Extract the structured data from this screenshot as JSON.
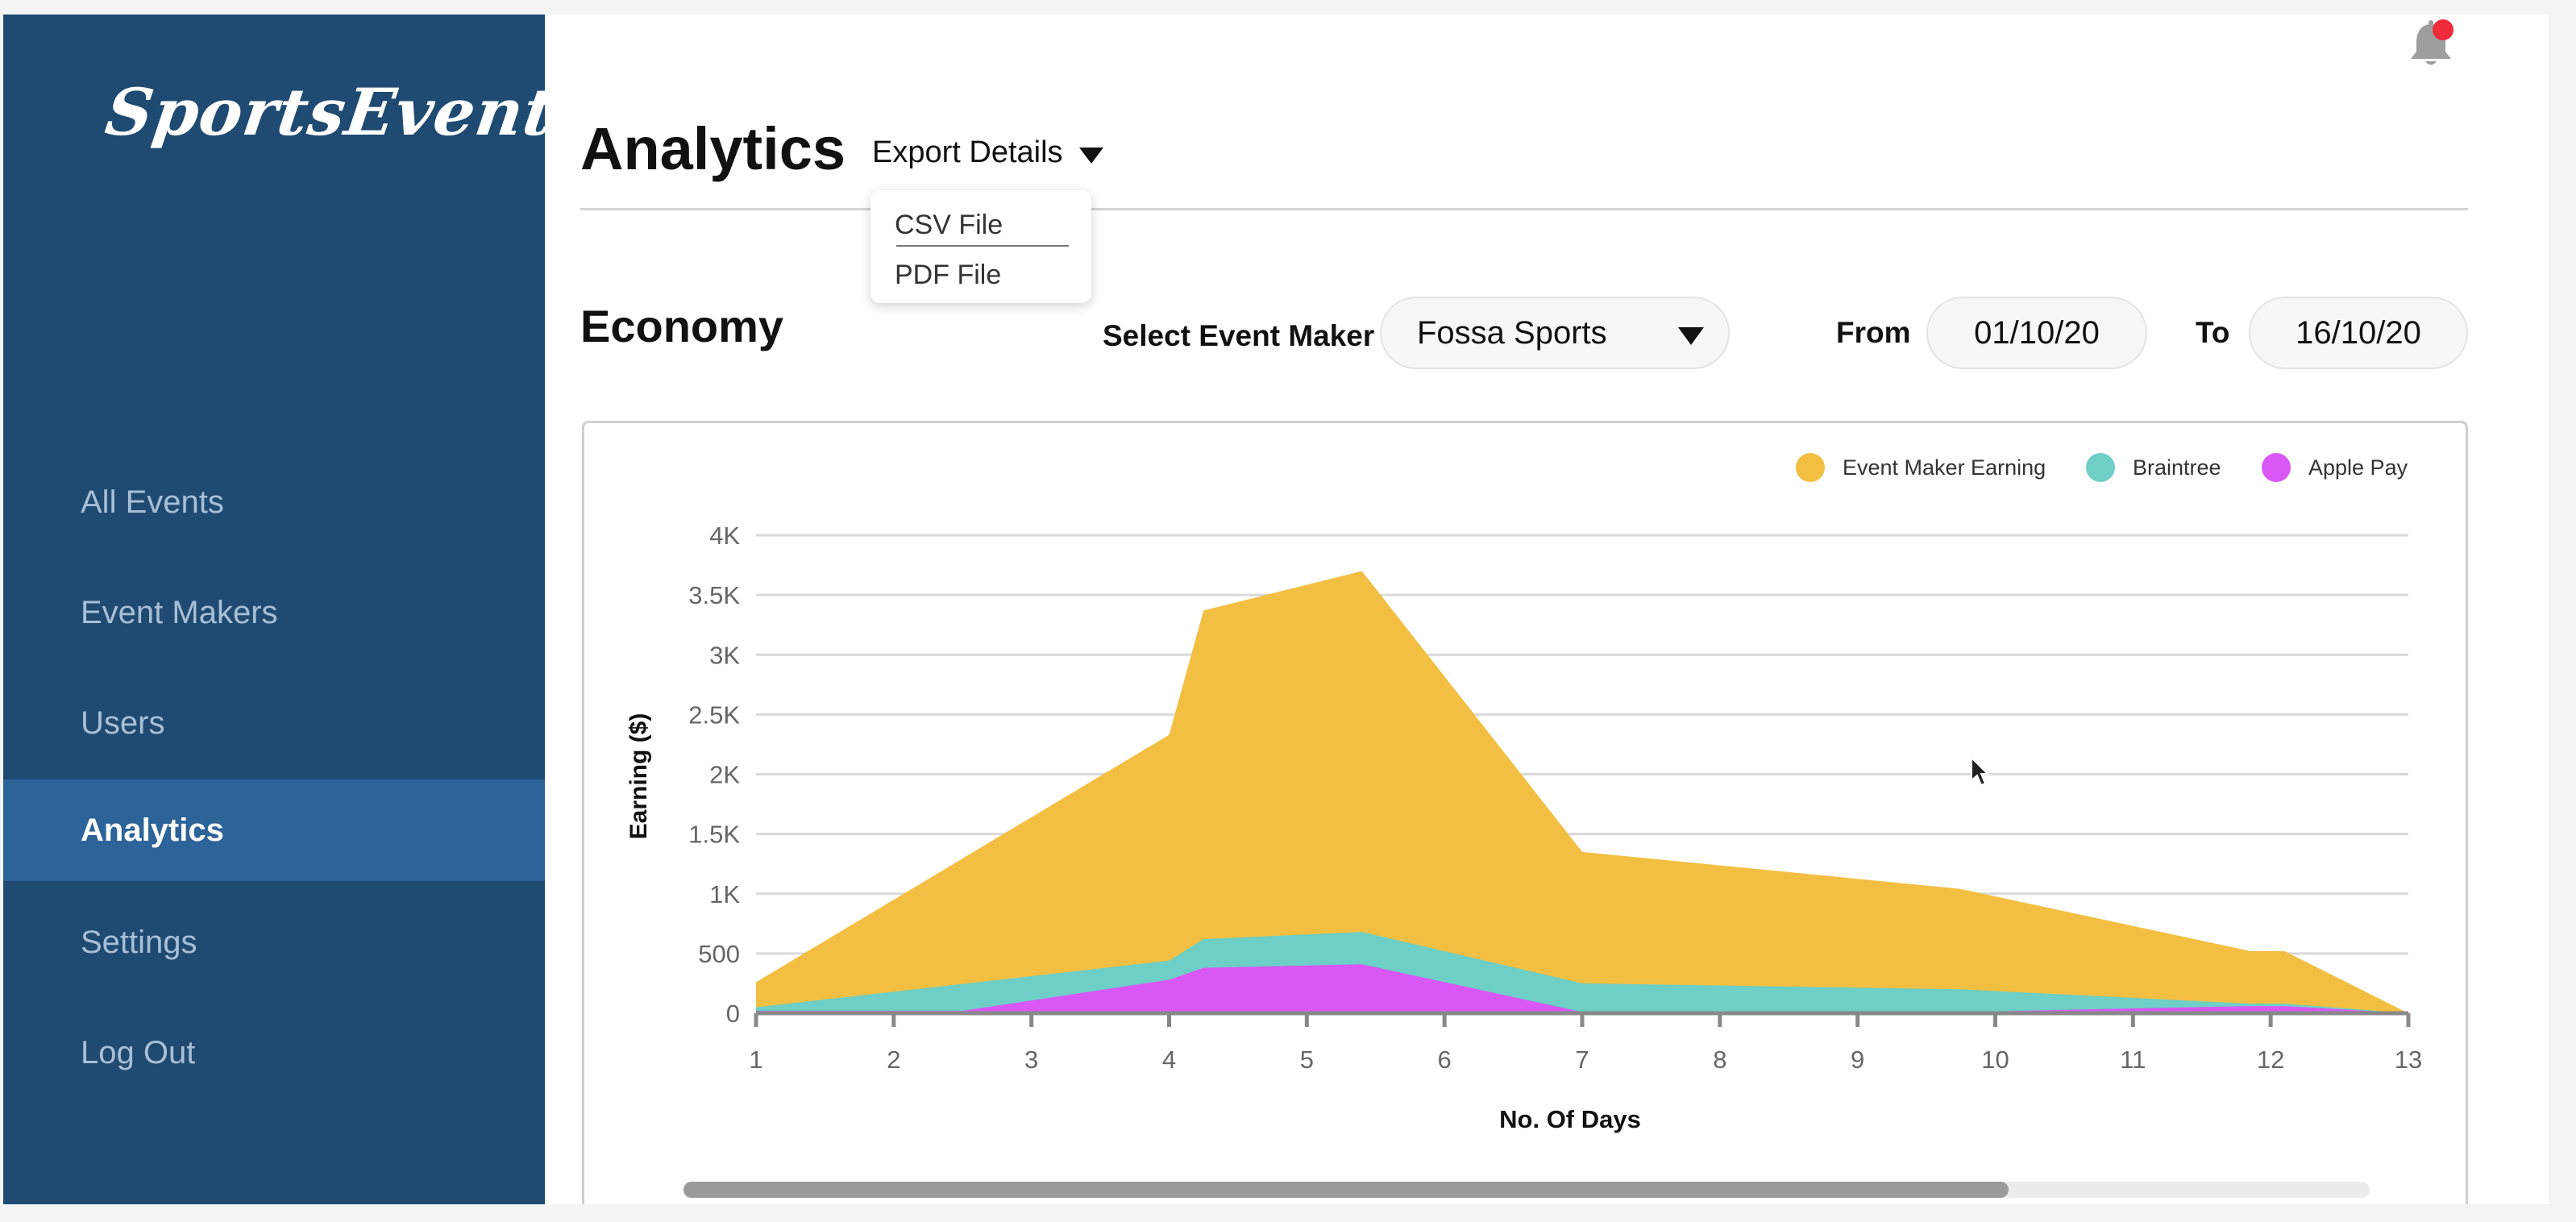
{
  "app": {
    "logo": "SportsEvent"
  },
  "sidebar": {
    "items": [
      {
        "label": "All Events"
      },
      {
        "label": "Event Makers"
      },
      {
        "label": "Users"
      },
      {
        "label": "Analytics",
        "active": true
      },
      {
        "label": "Settings"
      },
      {
        "label": "Log Out"
      }
    ]
  },
  "header": {
    "title": "Analytics",
    "export_label": "Export Details",
    "export_menu": [
      "CSV File",
      "PDF File"
    ]
  },
  "section": {
    "title": "Economy",
    "event_maker_label": "Select Event Maker",
    "event_maker_value": "Fossa Sports",
    "from_label": "From",
    "from_value": "01/10/20",
    "to_label": "To",
    "to_value": "16/10/20"
  },
  "colors": {
    "sidebar_bg": "#1f4a72",
    "sidebar_active": "#2c6399",
    "event_maker_earning": "#f2bf42",
    "braintree": "#6dcfc6",
    "apple_pay": "#d957f4",
    "notification_dot": "#ee2b3b"
  },
  "icons": [
    "bell-icon",
    "caret-down-icon",
    "mouse-pointer-icon"
  ],
  "chart_data": {
    "type": "area",
    "xlabel": "No. Of Days",
    "ylabel": "Earning ($)",
    "ylim": [
      0,
      4000
    ],
    "xlim": [
      1,
      13
    ],
    "y_ticks": [
      "0",
      "500",
      "1K",
      "1.5K",
      "2K",
      "2.5K",
      "3K",
      "3.5K",
      "4K"
    ],
    "x_ticks": [
      "1",
      "2",
      "3",
      "4",
      "5",
      "6",
      "7",
      "8",
      "9",
      "10",
      "11",
      "12",
      "13"
    ],
    "grid": true,
    "legend_position": "top-right",
    "series": [
      {
        "name": "Event Maker Earning",
        "color": "#f2bf42",
        "points": [
          [
            1,
            260
          ],
          [
            4,
            2330
          ],
          [
            4.25,
            3370
          ],
          [
            5.4,
            3700
          ],
          [
            7,
            1350
          ],
          [
            9.75,
            1040
          ],
          [
            11.85,
            520
          ],
          [
            12.1,
            520
          ],
          [
            13,
            0
          ]
        ]
      },
      {
        "name": "Braintree",
        "color": "#6dcfc6",
        "points": [
          [
            1,
            50
          ],
          [
            4,
            440
          ],
          [
            4.25,
            620
          ],
          [
            5.4,
            680
          ],
          [
            7,
            250
          ],
          [
            9.75,
            200
          ],
          [
            11.85,
            80
          ],
          [
            12.1,
            80
          ],
          [
            13,
            0
          ]
        ]
      },
      {
        "name": "Apple Pay",
        "color": "#d957f4",
        "points": [
          [
            1,
            20
          ],
          [
            2.5,
            20
          ],
          [
            4,
            280
          ],
          [
            4.25,
            380
          ],
          [
            5.4,
            410
          ],
          [
            7,
            10
          ],
          [
            9.75,
            10
          ],
          [
            11.85,
            60
          ],
          [
            12.1,
            60
          ],
          [
            13,
            0
          ]
        ]
      }
    ]
  }
}
